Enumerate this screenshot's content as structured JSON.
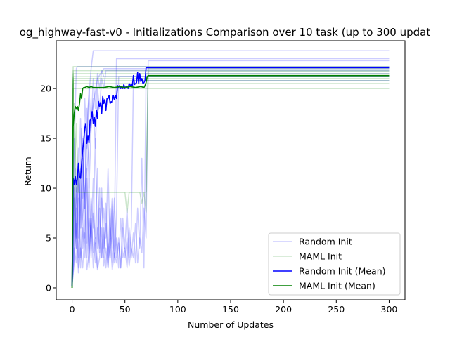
{
  "chart_data": {
    "type": "line",
    "title": "og_highway-fast-v0 - Initializations Comparison over 10 task (up to 300 updat",
    "xlabel": "Number of Updates",
    "ylabel": "Return",
    "xlim": [
      -15,
      315
    ],
    "ylim": [
      -1.2,
      24.8
    ],
    "xticks": [
      0,
      50,
      100,
      150,
      200,
      250,
      300
    ],
    "yticks": [
      0,
      5,
      10,
      15,
      20
    ],
    "legend_position": "lower right",
    "grid": false,
    "colors": {
      "random": "#0000ff",
      "maml": "#008000"
    },
    "legend": [
      {
        "label": "Random Init",
        "color": "#0000ff",
        "style": "faint"
      },
      {
        "label": "MAML Init",
        "color": "#008000",
        "style": "faint"
      },
      {
        "label": "Random Init (Mean)",
        "color": "#0000ff",
        "style": "solid"
      },
      {
        "label": "MAML Init (Mean)",
        "color": "#008000",
        "style": "solid"
      }
    ],
    "series": [
      {
        "name": "Random Init (Mean)",
        "color": "#0000ff",
        "x": [
          0,
          1,
          2,
          3,
          4,
          5,
          6,
          7,
          8,
          9,
          10,
          11,
          12,
          13,
          14,
          15,
          16,
          17,
          18,
          19,
          20,
          21,
          22,
          23,
          24,
          25,
          26,
          27,
          28,
          29,
          30,
          31,
          32,
          33,
          34,
          35,
          36,
          37,
          38,
          39,
          40,
          41,
          42,
          43,
          44,
          45,
          46,
          47,
          48,
          49,
          50,
          51,
          52,
          53,
          54,
          55,
          56,
          57,
          58,
          59,
          60,
          61,
          62,
          63,
          64,
          65,
          66,
          67,
          68,
          69,
          70,
          72,
          300
        ],
        "y": [
          0.2,
          11.0,
          10.4,
          11.2,
          10.4,
          11.0,
          12.5,
          11.2,
          11.0,
          12.5,
          13.8,
          14.8,
          16.0,
          16.5,
          14.5,
          15.3,
          14.6,
          16.8,
          17.0,
          17.7,
          16.5,
          17.1,
          16.2,
          17.8,
          17.0,
          18.7,
          18.2,
          18.6,
          17.5,
          19.2,
          18.5,
          18.9,
          17.8,
          19.0,
          19.0,
          19.3,
          18.5,
          18.7,
          18.6,
          19.3,
          18.9,
          19.3,
          19.0,
          20.3,
          20.1,
          20.3,
          20.0,
          20.2,
          20.0,
          20.4,
          20.0,
          20.2,
          20.2,
          20.0,
          20.5,
          20.3,
          20.4,
          20.3,
          21.3,
          20.4,
          20.5,
          20.6,
          21.6,
          20.5,
          21.5,
          20.7,
          21.0,
          20.5,
          20.6,
          20.8,
          22.1,
          22.1,
          22.1
        ]
      },
      {
        "name": "MAML Init (Mean)",
        "color": "#008000",
        "x": [
          0,
          1,
          2,
          3,
          4,
          5,
          6,
          7,
          8,
          9,
          10,
          11,
          12,
          14,
          16,
          18,
          20,
          25,
          30,
          35,
          40,
          45,
          50,
          55,
          60,
          65,
          68,
          69,
          70,
          71,
          72,
          300
        ],
        "y": [
          0.0,
          16.2,
          17.5,
          18.2,
          18.0,
          18.2,
          17.8,
          18.5,
          19.5,
          19.0,
          20.0,
          20.1,
          20.1,
          20.2,
          20.1,
          20.2,
          20.1,
          20.1,
          20.1,
          20.2,
          20.1,
          20.2,
          20.1,
          20.2,
          20.1,
          20.2,
          20.1,
          20.3,
          20.6,
          21.2,
          21.3,
          21.3
        ]
      },
      {
        "name": "Random Init",
        "color": "#0000ff",
        "faint": true,
        "runs": [
          {
            "x": [
              0,
              3,
              6,
              9,
              12,
              15,
              18,
              21,
              24,
              27,
              30,
              300
            ],
            "y": [
              0.2,
              7.0,
              12.5,
              6.0,
              9.5,
              13.0,
              17.0,
              19.0,
              21.0,
              21.5,
              22.0,
              22.0
            ]
          },
          {
            "x": [
              0,
              2,
              4,
              6,
              8,
              10,
              12,
              14,
              16,
              18,
              20,
              22,
              24,
              26,
              28,
              30,
              32,
              34,
              36,
              38,
              40,
              42,
              300
            ],
            "y": [
              0.2,
              9.0,
              4.0,
              14.0,
              3.0,
              8.0,
              16.5,
              4.5,
              11.0,
              3.0,
              7.5,
              5.0,
              12.0,
              3.5,
              9.0,
              4.0,
              6.5,
              3.0,
              8.0,
              2.5,
              5.0,
              23.0,
              23.0
            ]
          },
          {
            "x": [
              0,
              2,
              4,
              6,
              8,
              10,
              12,
              14,
              16,
              18,
              20,
              22,
              24,
              26,
              28,
              30,
              32,
              34,
              36,
              38,
              40,
              42,
              44,
              46,
              48,
              50,
              52,
              54,
              56,
              58,
              60,
              62,
              64,
              66,
              68,
              70,
              300
            ],
            "y": [
              0.2,
              4.0,
              2.5,
              9.0,
              2.0,
              6.0,
              3.0,
              12.0,
              2.0,
              7.0,
              3.5,
              5.0,
              2.0,
              8.0,
              3.0,
              6.0,
              2.0,
              4.5,
              3.0,
              9.0,
              2.5,
              5.0,
              2.0,
              7.0,
              3.0,
              4.0,
              2.0,
              6.0,
              3.0,
              5.5,
              2.5,
              8.0,
              4.0,
              13.0,
              2.0,
              21.5,
              21.5
            ]
          },
          {
            "x": [
              0,
              3,
              6,
              9,
              12,
              15,
              18,
              20,
              300
            ],
            "y": [
              0.2,
              12.0,
              5.0,
              16.0,
              8.0,
              18.0,
              22.0,
              23.8,
              23.8
            ]
          },
          {
            "x": [
              0,
              2,
              4,
              6,
              8,
              10,
              12,
              14,
              16,
              18,
              20,
              22,
              24,
              26,
              28,
              30,
              32,
              34,
              36,
              38,
              40,
              42,
              44,
              46,
              48,
              50,
              52,
              54,
              56,
              58,
              60,
              62,
              64,
              66,
              68,
              70,
              72,
              300
            ],
            "y": [
              0.2,
              2.5,
              6.5,
              1.5,
              4.0,
              2.0,
              5.5,
              1.8,
              3.5,
              7.0,
              2.0,
              4.5,
              1.8,
              3.0,
              6.0,
              2.2,
              4.0,
              2.0,
              5.0,
              1.8,
              3.5,
              2.5,
              4.5,
              2.0,
              6.0,
              3.0,
              5.0,
              2.2,
              4.0,
              3.0,
              6.5,
              2.5,
              5.0,
              3.5,
              8.0,
              5.0,
              22.8,
              22.8
            ]
          },
          {
            "x": [
              0,
              2,
              4,
              6,
              8,
              10,
              12,
              14,
              16,
              18,
              20,
              22,
              24,
              26,
              28,
              30,
              300
            ],
            "y": [
              0.2,
              15.0,
              5.0,
              10.0,
              17.0,
              9.0,
              19.0,
              14.0,
              20.0,
              16.0,
              21.0,
              18.0,
              21.5,
              20.0,
              21.8,
              21.2,
              21.2
            ]
          },
          {
            "x": [
              0,
              1,
              2,
              3,
              4,
              5,
              300
            ],
            "y": [
              0.2,
              9.0,
              14.0,
              18.0,
              22.0,
              22.2,
              22.2
            ]
          },
          {
            "x": [
              0,
              2,
              4,
              6,
              8,
              10,
              12,
              14,
              16,
              18,
              20,
              22,
              24,
              26,
              28,
              30,
              32,
              34,
              36,
              38,
              40,
              42,
              44,
              46,
              48,
              50,
              52,
              54,
              56,
              58,
              300
            ],
            "y": [
              0.2,
              3.0,
              8.0,
              2.0,
              12.0,
              4.0,
              9.5,
              3.0,
              7.0,
              5.0,
              11.0,
              2.5,
              6.0,
              4.0,
              10.0,
              3.0,
              8.5,
              2.0,
              6.0,
              4.0,
              9.0,
              3.0,
              5.0,
              2.0,
              7.0,
              4.0,
              8.0,
              3.0,
              6.0,
              20.8,
              20.8
            ]
          },
          {
            "x": [
              0,
              2,
              4,
              6,
              8,
              10,
              12,
              14,
              16,
              18,
              20,
              22,
              24,
              26,
              28,
              30,
              32,
              34,
              36,
              38,
              40,
              42,
              44,
              300
            ],
            "y": [
              0.2,
              6.0,
              10.0,
              3.0,
              8.0,
              13.0,
              5.0,
              11.0,
              2.5,
              9.0,
              6.0,
              15.0,
              4.0,
              10.0,
              3.0,
              8.0,
              5.0,
              12.0,
              4.0,
              9.0,
              3.0,
              7.0,
              21.2,
              21.2
            ]
          },
          {
            "x": [
              0,
              2,
              4,
              6,
              8,
              10,
              12,
              14,
              16,
              18,
              20,
              22,
              24,
              26,
              28,
              30,
              32,
              300
            ],
            "y": [
              0.2,
              10.0,
              4.0,
              12.0,
              6.0,
              15.0,
              8.0,
              18.0,
              10.0,
              16.0,
              19.0,
              14.0,
              20.0,
              18.0,
              21.0,
              20.0,
              21.8,
              21.8
            ]
          }
        ]
      },
      {
        "name": "MAML Init",
        "color": "#008000",
        "faint": true,
        "runs": [
          {
            "x": [
              0,
              1,
              300
            ],
            "y": [
              0.0,
              22.2,
              22.2
            ]
          },
          {
            "x": [
              0,
              1,
              300
            ],
            "y": [
              0.0,
              21.8,
              21.8
            ]
          },
          {
            "x": [
              0,
              1,
              300
            ],
            "y": [
              0.0,
              21.5,
              21.5
            ]
          },
          {
            "x": [
              0,
              1,
              300
            ],
            "y": [
              0.0,
              21.0,
              21.0
            ]
          },
          {
            "x": [
              0,
              1,
              300
            ],
            "y": [
              0.0,
              20.8,
              20.8
            ]
          },
          {
            "x": [
              0,
              1,
              300
            ],
            "y": [
              0.0,
              20.5,
              20.5
            ]
          },
          {
            "x": [
              0,
              1,
              300
            ],
            "y": [
              0.0,
              20.0,
              20.0
            ]
          },
          {
            "x": [
              0,
              1,
              300
            ],
            "y": [
              0.0,
              21.2,
              21.2
            ]
          },
          {
            "x": [
              0,
              2,
              4,
              6,
              8,
              10,
              50,
              52,
              54,
              70,
              72,
              300
            ],
            "y": [
              0.0,
              9.6,
              16.5,
              9.6,
              9.6,
              9.6,
              9.6,
              7.5,
              9.6,
              9.6,
              22.0,
              22.0
            ]
          },
          {
            "x": [
              0,
              1,
              2,
              4,
              6,
              64,
              66,
              68,
              70,
              72,
              300
            ],
            "y": [
              0.0,
              9.6,
              18.5,
              9.6,
              9.6,
              9.6,
              8.5,
              9.6,
              7.6,
              21.7,
              21.7
            ]
          }
        ]
      }
    ]
  }
}
